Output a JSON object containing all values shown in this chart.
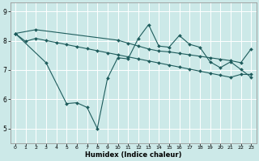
{
  "xlabel": "Humidex (Indice chaleur)",
  "bg_color": "#cce9e8",
  "line_color": "#1e5c5c",
  "grid_color": "#ffffff",
  "xlim": [
    -0.5,
    23.5
  ],
  "ylim": [
    4.5,
    9.3
  ],
  "yticks": [
    5,
    6,
    7,
    8,
    9
  ],
  "xticks": [
    0,
    1,
    2,
    3,
    4,
    5,
    6,
    7,
    8,
    9,
    10,
    11,
    12,
    13,
    14,
    15,
    16,
    17,
    18,
    19,
    20,
    21,
    22,
    23
  ],
  "line_top_x": [
    0,
    2,
    10,
    11,
    12,
    13,
    14,
    15,
    16,
    17,
    18,
    19,
    20,
    21,
    22,
    23
  ],
  "line_top_y": [
    8.25,
    8.38,
    8.02,
    7.92,
    7.82,
    7.72,
    7.65,
    7.62,
    7.57,
    7.52,
    7.47,
    7.42,
    7.37,
    7.32,
    7.25,
    7.72
  ],
  "line_mid_x": [
    0,
    1,
    2,
    3,
    4,
    5,
    6,
    7,
    8,
    9,
    10,
    11,
    12,
    13,
    14,
    15,
    16,
    17,
    18,
    19,
    20,
    21,
    22,
    23
  ],
  "line_mid_y": [
    8.25,
    7.98,
    8.08,
    8.01,
    7.94,
    7.87,
    7.8,
    7.73,
    7.66,
    7.59,
    7.52,
    7.45,
    7.38,
    7.31,
    7.24,
    7.17,
    7.1,
    7.03,
    6.96,
    6.89,
    6.82,
    6.75,
    6.85,
    6.85
  ],
  "line_zig_x": [
    0,
    3,
    5,
    6,
    7,
    8,
    9,
    10,
    11,
    12,
    13,
    14,
    15,
    16,
    17,
    18,
    19,
    20,
    21,
    22,
    23
  ],
  "line_zig_y": [
    8.25,
    7.25,
    5.85,
    5.88,
    5.72,
    5.0,
    6.72,
    7.42,
    7.38,
    8.08,
    8.55,
    7.82,
    7.78,
    8.18,
    7.88,
    7.78,
    7.28,
    7.08,
    7.28,
    7.02,
    6.75
  ]
}
